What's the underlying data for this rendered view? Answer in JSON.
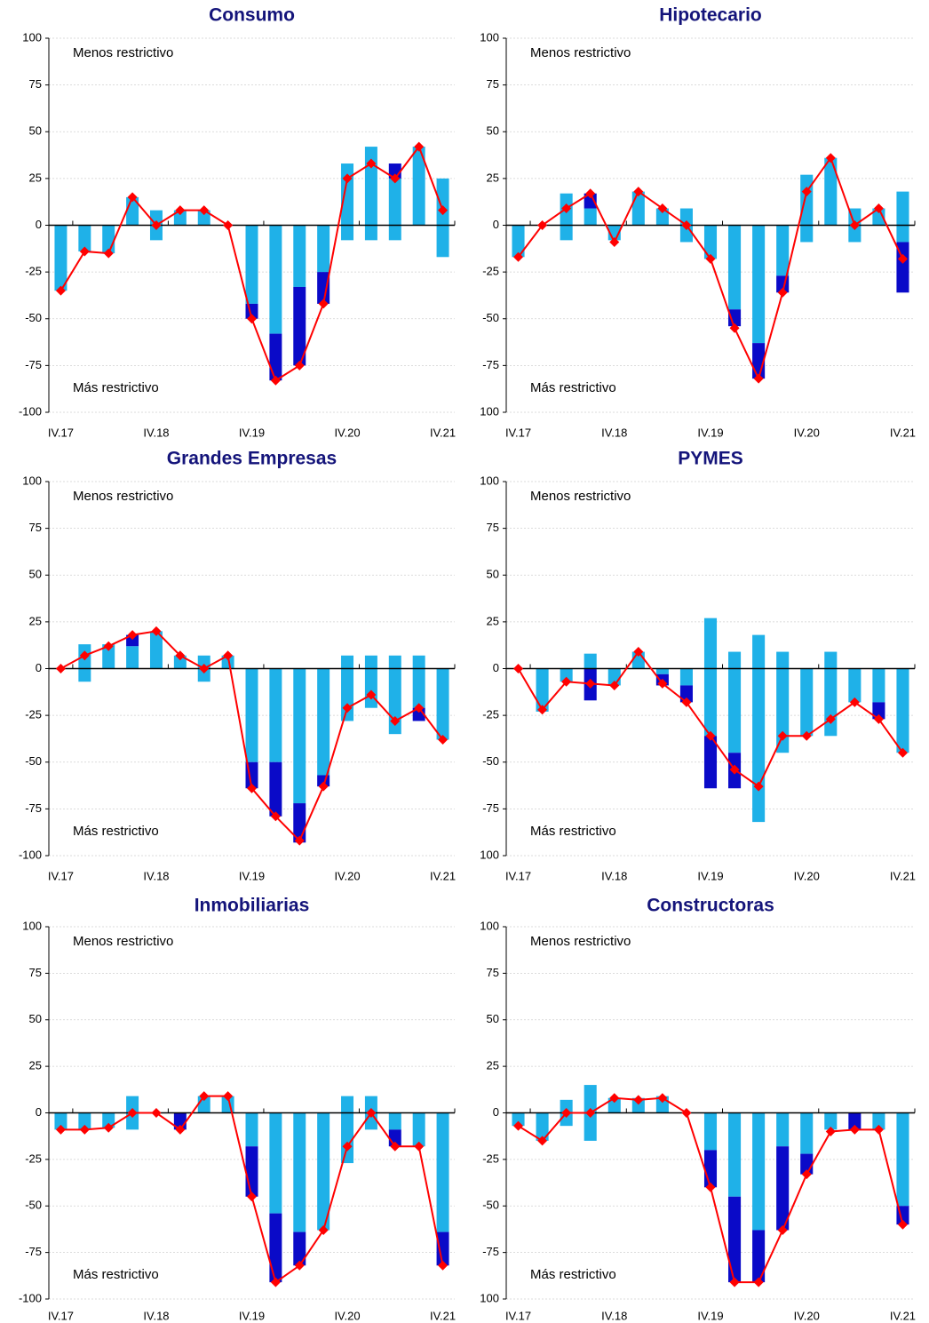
{
  "chart_data": [
    {
      "type": "bar",
      "title": "Consumo",
      "categories": [
        "IV.17",
        null,
        null,
        null,
        "IV.18",
        null,
        null,
        null,
        "IV.19",
        null,
        null,
        null,
        "IV.20",
        null,
        null,
        null,
        "IV.21"
      ],
      "annotations": [
        "Menos restrictivo",
        "Más restrictivo"
      ],
      "ylim": [
        -100,
        100
      ],
      "yticks": [
        -100,
        -75,
        -50,
        -25,
        0,
        25,
        50,
        75,
        100
      ],
      "grid": true,
      "series": [
        {
          "type": "bar",
          "color": "#1fb1e8",
          "values": [
            0,
            0,
            0,
            15,
            8,
            8,
            8,
            0,
            0,
            0,
            0,
            0,
            33,
            42,
            25,
            42,
            25
          ]
        },
        {
          "type": "bar",
          "color": "#0a0ac8",
          "values": [
            0,
            0,
            0,
            0,
            0,
            0,
            0,
            0,
            0,
            0,
            0,
            0,
            0,
            0,
            8,
            0,
            0
          ]
        },
        {
          "type": "bar",
          "color": "#1fb1e8",
          "values": [
            -35,
            -14,
            -15,
            0,
            -8,
            0,
            0,
            0,
            -42,
            -58,
            -33,
            -25,
            -8,
            -8,
            -8,
            0,
            -17
          ]
        },
        {
          "type": "bar",
          "color": "#0a0ac8",
          "values": [
            0,
            0,
            0,
            0,
            0,
            0,
            0,
            0,
            -8,
            -25,
            -42,
            -17,
            0,
            0,
            0,
            0,
            0
          ]
        },
        {
          "type": "line",
          "color": "#ff0000",
          "values": [
            -35,
            -14,
            -15,
            15,
            0,
            8,
            8,
            0,
            -50,
            -83,
            -75,
            -42,
            25,
            33,
            25,
            42,
            8
          ]
        }
      ]
    },
    {
      "type": "bar",
      "title": "Hipotecario",
      "categories": [
        "IV.17",
        null,
        null,
        null,
        "IV.18",
        null,
        null,
        null,
        "IV.19",
        null,
        null,
        null,
        "IV.20",
        null,
        null,
        null,
        "IV.21"
      ],
      "annotations": [
        "Menos restrictivo",
        "Más restrictivo"
      ],
      "ylim": [
        -100,
        100
      ],
      "yticks": [
        {
          "value": -100,
          "label": "100"
        },
        -75,
        -50,
        -25,
        0,
        25,
        50,
        75,
        100
      ],
      "grid": true,
      "series": [
        {
          "type": "bar",
          "color": "#1fb1e8",
          "values": [
            0,
            0,
            17,
            9,
            0,
            18,
            9,
            9,
            0,
            0,
            0,
            0,
            27,
            36,
            9,
            9,
            18
          ]
        },
        {
          "type": "bar",
          "color": "#0a0ac8",
          "values": [
            0,
            0,
            0,
            8,
            0,
            0,
            0,
            0,
            0,
            0,
            0,
            0,
            0,
            0,
            0,
            0,
            0
          ]
        },
        {
          "type": "bar",
          "color": "#1fb1e8",
          "values": [
            -17,
            0,
            -8,
            0,
            -8,
            0,
            0,
            -9,
            -18,
            -45,
            -63,
            -27,
            -9,
            0,
            -9,
            0,
            -9
          ]
        },
        {
          "type": "bar",
          "color": "#0a0ac8",
          "values": [
            0,
            0,
            0,
            0,
            0,
            0,
            0,
            0,
            0,
            -9,
            -19,
            -9,
            0,
            0,
            0,
            0,
            -27
          ]
        },
        {
          "type": "line",
          "color": "#ff0000",
          "values": [
            -17,
            0,
            9,
            17,
            -9,
            18,
            9,
            0,
            -18,
            -55,
            -82,
            -36,
            18,
            36,
            0,
            9,
            -18
          ]
        }
      ]
    },
    {
      "type": "bar",
      "title": "Grandes Empresas",
      "categories": [
        "IV.17",
        null,
        null,
        null,
        "IV.18",
        null,
        null,
        null,
        "IV.19",
        null,
        null,
        null,
        "IV.20",
        null,
        null,
        null,
        "IV.21"
      ],
      "annotations": [
        "Menos restrictivo",
        "Más restrictivo"
      ],
      "ylim": [
        -100,
        100
      ],
      "yticks": [
        -100,
        -75,
        -50,
        -25,
        0,
        25,
        50,
        75,
        100
      ],
      "grid": true,
      "series": [
        {
          "type": "bar",
          "color": "#1fb1e8",
          "values": [
            0,
            13,
            13,
            12,
            20,
            7,
            7,
            7,
            0,
            0,
            0,
            0,
            7,
            7,
            7,
            7,
            0
          ]
        },
        {
          "type": "bar",
          "color": "#0a0ac8",
          "values": [
            0,
            0,
            0,
            6,
            0,
            0,
            0,
            0,
            0,
            0,
            0,
            0,
            0,
            0,
            0,
            0,
            0
          ]
        },
        {
          "type": "bar",
          "color": "#1fb1e8",
          "values": [
            0,
            -7,
            0,
            0,
            0,
            0,
            -7,
            0,
            -50,
            -50,
            -72,
            -57,
            -28,
            -21,
            -35,
            -21,
            -38
          ]
        },
        {
          "type": "bar",
          "color": "#0a0ac8",
          "values": [
            0,
            0,
            0,
            0,
            0,
            0,
            0,
            0,
            -14,
            -29,
            -21,
            -6,
            0,
            0,
            0,
            -7,
            0
          ]
        },
        {
          "type": "line",
          "color": "#ff0000",
          "values": [
            0,
            7,
            12,
            18,
            20,
            7,
            0,
            7,
            -64,
            -79,
            -92,
            -63,
            -21,
            -14,
            -28,
            -21,
            -38
          ]
        }
      ]
    },
    {
      "type": "bar",
      "title": "PYMES",
      "categories": [
        "IV.17",
        null,
        null,
        null,
        "IV.18",
        null,
        null,
        null,
        "IV.19",
        null,
        null,
        null,
        "IV.20",
        null,
        null,
        null,
        "IV.21"
      ],
      "annotations": [
        "Menos restrictivo",
        "Más restrictivo"
      ],
      "ylim": [
        -100,
        100
      ],
      "yticks": [
        {
          "value": -100,
          "label": "100"
        },
        -75,
        -50,
        -25,
        0,
        25,
        50,
        75,
        100
      ],
      "grid": true,
      "series": [
        {
          "type": "bar",
          "color": "#1fb1e8",
          "values": [
            0,
            0,
            0,
            8,
            0,
            9,
            0,
            0,
            27,
            9,
            18,
            9,
            0,
            9,
            0,
            0,
            0
          ]
        },
        {
          "type": "bar",
          "color": "#0a0ac8",
          "values": [
            0,
            0,
            0,
            0,
            0,
            0,
            0,
            0,
            0,
            0,
            0,
            0,
            0,
            0,
            0,
            0,
            0
          ]
        },
        {
          "type": "bar",
          "color": "#1fb1e8",
          "values": [
            0,
            -23,
            -7,
            0,
            -9,
            0,
            -3,
            -9,
            -36,
            -45,
            -82,
            -45,
            -36,
            -36,
            -18,
            -18,
            -45
          ]
        },
        {
          "type": "bar",
          "color": "#0a0ac8",
          "values": [
            0,
            0,
            0,
            -17,
            0,
            0,
            -6,
            -9,
            -28,
            -19,
            0,
            0,
            0,
            0,
            0,
            -9,
            0
          ]
        },
        {
          "type": "line",
          "color": "#ff0000",
          "values": [
            0,
            -22,
            -7,
            -8,
            -9,
            9,
            -8,
            -18,
            -36,
            -54,
            -63,
            -36,
            -36,
            -27,
            -18,
            -27,
            -45
          ]
        }
      ]
    },
    {
      "type": "bar",
      "title": "Inmobiliarias",
      "categories": [
        "IV.17",
        null,
        null,
        null,
        "IV.18",
        null,
        null,
        null,
        "IV.19",
        null,
        null,
        null,
        "IV.20",
        null,
        null,
        null,
        "IV.21"
      ],
      "annotations": [
        "Menos restrictivo",
        "Más restrictivo"
      ],
      "ylim": [
        -100,
        100
      ],
      "yticks": [
        -100,
        -75,
        -50,
        -25,
        0,
        25,
        50,
        75,
        100
      ],
      "grid": true,
      "series": [
        {
          "type": "bar",
          "color": "#1fb1e8",
          "values": [
            0,
            0,
            0,
            9,
            0,
            0,
            9,
            9,
            0,
            0,
            0,
            0,
            9,
            9,
            0,
            0,
            0
          ]
        },
        {
          "type": "bar",
          "color": "#0a0ac8",
          "values": [
            0,
            0,
            0,
            0,
            0,
            0,
            0,
            0,
            0,
            0,
            0,
            0,
            0,
            0,
            0,
            0,
            0
          ]
        },
        {
          "type": "bar",
          "color": "#1fb1e8",
          "values": [
            -9,
            -9,
            -8,
            -9,
            0,
            0,
            0,
            0,
            -18,
            -54,
            -64,
            -63,
            -27,
            -9,
            -9,
            -18,
            -64
          ]
        },
        {
          "type": "bar",
          "color": "#0a0ac8",
          "values": [
            0,
            0,
            0,
            0,
            0,
            -9,
            0,
            0,
            -27,
            -37,
            -18,
            0,
            0,
            0,
            -9,
            0,
            -18
          ]
        },
        {
          "type": "line",
          "color": "#ff0000",
          "values": [
            -9,
            -9,
            -8,
            0,
            0,
            -9,
            9,
            9,
            -45,
            -91,
            -82,
            -63,
            -18,
            0,
            -18,
            -18,
            -82
          ]
        }
      ]
    },
    {
      "type": "bar",
      "title": "Constructoras",
      "categories": [
        "IV.17",
        null,
        null,
        null,
        "IV.18",
        null,
        null,
        null,
        "IV.19",
        null,
        null,
        null,
        "IV.20",
        null,
        null,
        null,
        "IV.21"
      ],
      "annotations": [
        "Menos restrictivo",
        "Más restrictivo"
      ],
      "ylim": [
        -100,
        100
      ],
      "yticks": [
        {
          "value": -100,
          "label": "100"
        },
        -75,
        -50,
        -25,
        0,
        25,
        50,
        75,
        100
      ],
      "grid": true,
      "series": [
        {
          "type": "bar",
          "color": "#1fb1e8",
          "values": [
            0,
            0,
            7,
            15,
            8,
            8,
            9,
            0,
            0,
            0,
            0,
            0,
            0,
            0,
            0,
            0,
            0
          ]
        },
        {
          "type": "bar",
          "color": "#0a0ac8",
          "values": [
            0,
            0,
            0,
            0,
            0,
            0,
            0,
            0,
            0,
            0,
            0,
            0,
            0,
            0,
            0,
            0,
            0
          ]
        },
        {
          "type": "bar",
          "color": "#1fb1e8",
          "values": [
            -7,
            -15,
            -7,
            -15,
            0,
            0,
            0,
            0,
            -20,
            -45,
            -63,
            -18,
            -22,
            -9,
            0,
            -9,
            -50
          ]
        },
        {
          "type": "bar",
          "color": "#0a0ac8",
          "values": [
            0,
            0,
            0,
            0,
            0,
            0,
            0,
            0,
            -20,
            -46,
            -28,
            -45,
            -11,
            0,
            -9,
            0,
            -10
          ]
        },
        {
          "type": "line",
          "color": "#ff0000",
          "values": [
            -7,
            -15,
            0,
            0,
            8,
            7,
            8,
            0,
            -40,
            -91,
            -91,
            -63,
            -33,
            -10,
            -9,
            -9,
            -60
          ]
        }
      ]
    }
  ]
}
